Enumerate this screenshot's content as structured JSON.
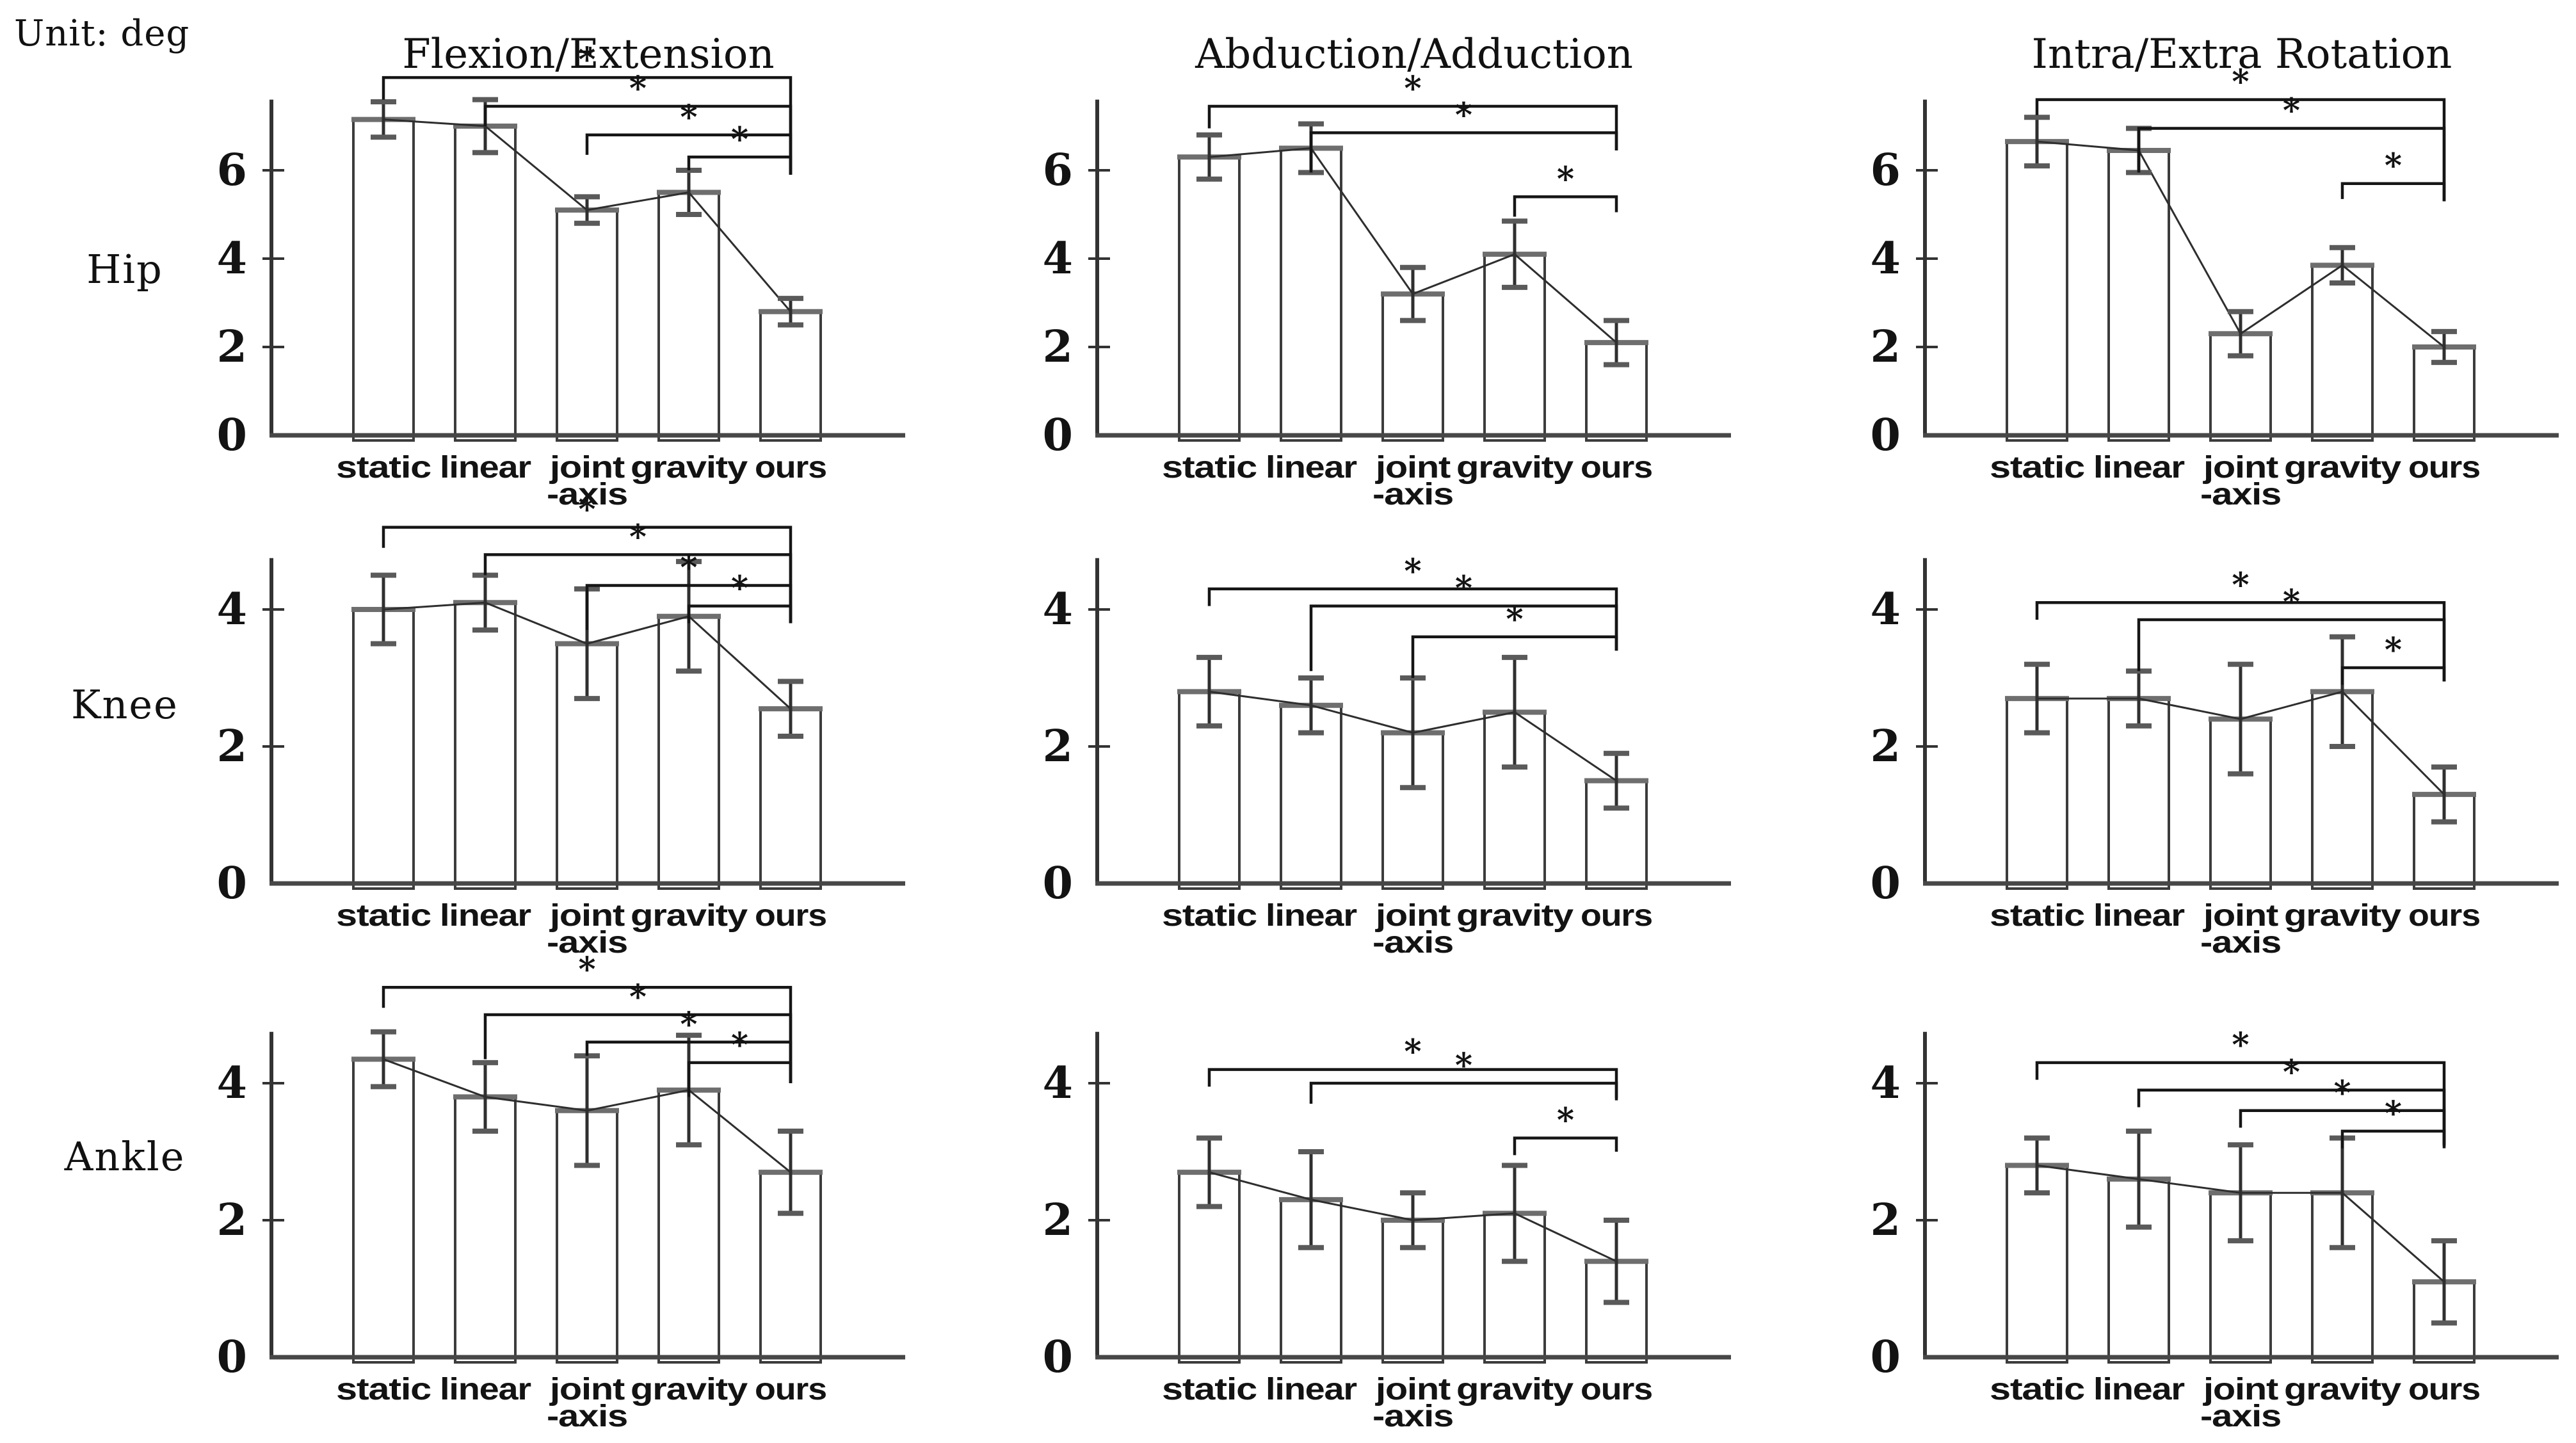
{
  "unit_label": "Unit: deg",
  "columns": [
    {
      "title": "Flexion/Extension"
    },
    {
      "title": "Abduction/Adduction"
    },
    {
      "title": "Intra/Extra Rotation"
    }
  ],
  "rows": [
    {
      "label": "Hip"
    },
    {
      "label": "Knee"
    },
    {
      "label": "Ankle"
    }
  ],
  "categories": [
    "static",
    "linear",
    "joint\n-axis",
    "gravity",
    "ours"
  ],
  "colors": {
    "background": "#ffffff",
    "axis": "#333333",
    "baseline": "#474747",
    "bar_fill": "#ffffff",
    "bar_edge": "#3c3c3c",
    "bar_top_cap": "#6e6e6e",
    "error_stem": "#2f2f2f",
    "error_cap": "#5a5a5a",
    "mean_line": "#2e2e2e",
    "bracket": "#151515",
    "text": "#131313"
  },
  "chart_data": [
    {
      "id": "hip-flexion-extension",
      "row": "Hip",
      "column": "Flexion/Extension",
      "type": "bar",
      "unit": "deg",
      "categories": [
        "static",
        "linear",
        "joint-axis",
        "gravity",
        "ours"
      ],
      "values": [
        7.15,
        7.0,
        5.1,
        5.5,
        2.8
      ],
      "errors": [
        0.4,
        0.6,
        0.3,
        0.5,
        0.3
      ],
      "yticks": [
        0,
        2,
        4,
        6
      ],
      "ylim": [
        0,
        7.6
      ],
      "significance": [
        {
          "from": "static",
          "to": "ours",
          "label": "*",
          "level": 8.1,
          "left_drop": 0.5,
          "right_drop": 2.2
        },
        {
          "from": "linear",
          "to": "ours",
          "label": "*",
          "level": 7.45,
          "left_drop": 0.45,
          "right_drop": 1.55
        },
        {
          "from": "joint-axis",
          "to": "ours",
          "label": "*",
          "level": 6.8,
          "left_drop": 0.45,
          "right_drop": 0.9
        },
        {
          "from": "gravity",
          "to": "ours",
          "label": "*",
          "level": 6.3,
          "left_drop": 0.3,
          "right_drop": 0.4
        }
      ]
    },
    {
      "id": "hip-abduction-adduction",
      "row": "Hip",
      "column": "Abduction/Adduction",
      "type": "bar",
      "unit": "deg",
      "categories": [
        "static",
        "linear",
        "joint-axis",
        "gravity",
        "ours"
      ],
      "values": [
        6.3,
        6.5,
        3.2,
        4.1,
        2.1
      ],
      "errors": [
        0.5,
        0.55,
        0.6,
        0.75,
        0.5
      ],
      "yticks": [
        0,
        2,
        4,
        6
      ],
      "ylim": [
        0,
        7.6
      ],
      "significance": [
        {
          "from": "static",
          "to": "ours",
          "label": "*",
          "level": 7.45,
          "left_drop": 0.5,
          "right_drop": 1.0
        },
        {
          "from": "linear",
          "to": "ours",
          "label": "*",
          "level": 6.85,
          "left_drop": 0.9,
          "right_drop": 0.4
        },
        {
          "from": "gravity",
          "to": "ours",
          "label": "*",
          "level": 5.4,
          "left_drop": 0.45,
          "right_drop": 0.35
        }
      ]
    },
    {
      "id": "hip-intra-extra-rotation",
      "row": "Hip",
      "column": "Intra/Extra Rotation",
      "type": "bar",
      "unit": "deg",
      "categories": [
        "static",
        "linear",
        "joint-axis",
        "gravity",
        "ours"
      ],
      "values": [
        6.65,
        6.45,
        2.3,
        3.85,
        2.0
      ],
      "errors": [
        0.55,
        0.5,
        0.5,
        0.4,
        0.35
      ],
      "yticks": [
        0,
        2,
        4,
        6
      ],
      "ylim": [
        0,
        7.6
      ],
      "significance": [
        {
          "from": "static",
          "to": "ours",
          "label": "*",
          "level": 7.6,
          "left_drop": 0.35,
          "right_drop": 2.3
        },
        {
          "from": "linear",
          "to": "ours",
          "label": "*",
          "level": 6.95,
          "left_drop": 1.0,
          "right_drop": 1.65
        },
        {
          "from": "gravity",
          "to": "ours",
          "label": "*",
          "level": 5.7,
          "left_drop": 0.35,
          "right_drop": 0.4
        }
      ]
    },
    {
      "id": "knee-flexion-extension",
      "row": "Knee",
      "column": "Flexion/Extension",
      "type": "bar",
      "unit": "deg",
      "categories": [
        "static",
        "linear",
        "joint-axis",
        "gravity",
        "ours"
      ],
      "values": [
        4.0,
        4.1,
        3.5,
        3.9,
        2.55
      ],
      "errors": [
        0.5,
        0.4,
        0.8,
        0.8,
        0.4
      ],
      "yticks": [
        0,
        2,
        4
      ],
      "ylim": [
        0,
        4.75
      ],
      "significance": [
        {
          "from": "static",
          "to": "ours",
          "label": "*",
          "level": 5.2,
          "left_drop": 0.3,
          "right_drop": 1.4
        },
        {
          "from": "linear",
          "to": "ours",
          "label": "*",
          "level": 4.8,
          "left_drop": 0.3,
          "right_drop": 1.0
        },
        {
          "from": "joint-axis",
          "to": "ours",
          "label": "*",
          "level": 4.35,
          "left_drop": 0.65,
          "right_drop": 0.55
        },
        {
          "from": "gravity",
          "to": "ours",
          "label": "*",
          "level": 4.05,
          "left_drop": 0.25,
          "right_drop": 0.25
        }
      ]
    },
    {
      "id": "knee-abduction-adduction",
      "row": "Knee",
      "column": "Abduction/Adduction",
      "type": "bar",
      "unit": "deg",
      "categories": [
        "static",
        "linear",
        "joint-axis",
        "gravity",
        "ours"
      ],
      "values": [
        2.8,
        2.6,
        2.2,
        2.5,
        1.5
      ],
      "errors": [
        0.5,
        0.4,
        0.8,
        0.8,
        0.4
      ],
      "yticks": [
        0,
        2,
        4
      ],
      "ylim": [
        0,
        4.75
      ],
      "significance": [
        {
          "from": "static",
          "to": "ours",
          "label": "*",
          "level": 4.3,
          "left_drop": 0.25,
          "right_drop": 0.9
        },
        {
          "from": "linear",
          "to": "ours",
          "label": "*",
          "level": 4.05,
          "left_drop": 0.95,
          "right_drop": 0.65
        },
        {
          "from": "joint-axis",
          "to": "ours",
          "label": "*",
          "level": 3.6,
          "left_drop": 0.6,
          "right_drop": 0.2
        }
      ]
    },
    {
      "id": "knee-intra-extra-rotation",
      "row": "Knee",
      "column": "Intra/Extra Rotation",
      "type": "bar",
      "unit": "deg",
      "categories": [
        "static",
        "linear",
        "joint-axis",
        "gravity",
        "ours"
      ],
      "values": [
        2.7,
        2.7,
        2.4,
        2.8,
        1.3
      ],
      "errors": [
        0.5,
        0.4,
        0.8,
        0.8,
        0.4
      ],
      "yticks": [
        0,
        2,
        4
      ],
      "ylim": [
        0,
        4.75
      ],
      "significance": [
        {
          "from": "static",
          "to": "ours",
          "label": "*",
          "level": 4.1,
          "left_drop": 0.25,
          "right_drop": 1.15
        },
        {
          "from": "linear",
          "to": "ours",
          "label": "*",
          "level": 3.85,
          "left_drop": 0.75,
          "right_drop": 0.9
        },
        {
          "from": "gravity",
          "to": "ours",
          "label": "*",
          "level": 3.15,
          "left_drop": 0.25,
          "right_drop": 0.2
        }
      ]
    },
    {
      "id": "ankle-flexion-extension",
      "row": "Ankle",
      "column": "Flexion/Extension",
      "type": "bar",
      "unit": "deg",
      "categories": [
        "static",
        "linear",
        "joint-axis",
        "gravity",
        "ours"
      ],
      "values": [
        4.35,
        3.8,
        3.6,
        3.9,
        2.7
      ],
      "errors": [
        0.4,
        0.5,
        0.8,
        0.8,
        0.6
      ],
      "yticks": [
        0,
        2,
        4
      ],
      "ylim": [
        0,
        4.75
      ],
      "significance": [
        {
          "from": "static",
          "to": "ours",
          "label": "*",
          "level": 5.4,
          "left_drop": 0.3,
          "right_drop": 1.4
        },
        {
          "from": "linear",
          "to": "ours",
          "label": "*",
          "level": 5.0,
          "left_drop": 0.65,
          "right_drop": 1.0
        },
        {
          "from": "joint-axis",
          "to": "ours",
          "label": "*",
          "level": 4.6,
          "left_drop": 0.2,
          "right_drop": 0.6
        },
        {
          "from": "gravity",
          "to": "ours",
          "label": "*",
          "level": 4.3,
          "left_drop": 0.5,
          "right_drop": 0.3
        }
      ]
    },
    {
      "id": "ankle-abduction-adduction",
      "row": "Ankle",
      "column": "Abduction/Adduction",
      "type": "bar",
      "unit": "deg",
      "categories": [
        "static",
        "linear",
        "joint-axis",
        "gravity",
        "ours"
      ],
      "values": [
        2.7,
        2.3,
        2.0,
        2.1,
        1.4
      ],
      "errors": [
        0.5,
        0.7,
        0.4,
        0.7,
        0.6
      ],
      "yticks": [
        0,
        2,
        4
      ],
      "ylim": [
        0,
        4.75
      ],
      "significance": [
        {
          "from": "static",
          "to": "ours",
          "label": "*",
          "level": 4.2,
          "left_drop": 0.25,
          "right_drop": 0.45
        },
        {
          "from": "linear",
          "to": "ours",
          "label": "*",
          "level": 4.0,
          "left_drop": 0.3,
          "right_drop": 0.22
        },
        {
          "from": "gravity",
          "to": "ours",
          "label": "*",
          "level": 3.2,
          "left_drop": 0.25,
          "right_drop": 0.2
        }
      ]
    },
    {
      "id": "ankle-intra-extra-rotation",
      "row": "Ankle",
      "column": "Intra/Extra Rotation",
      "type": "bar",
      "unit": "deg",
      "categories": [
        "static",
        "linear",
        "joint-axis",
        "gravity",
        "ours"
      ],
      "values": [
        2.8,
        2.6,
        2.4,
        2.4,
        1.1
      ],
      "errors": [
        0.4,
        0.7,
        0.7,
        0.8,
        0.6
      ],
      "yticks": [
        0,
        2,
        4
      ],
      "ylim": [
        0,
        4.75
      ],
      "significance": [
        {
          "from": "static",
          "to": "ours",
          "label": "*",
          "level": 4.3,
          "left_drop": 0.25,
          "right_drop": 1.2
        },
        {
          "from": "linear",
          "to": "ours",
          "label": "*",
          "level": 3.9,
          "left_drop": 0.25,
          "right_drop": 0.85
        },
        {
          "from": "joint-axis",
          "to": "ours",
          "label": "*",
          "level": 3.6,
          "left_drop": 0.25,
          "right_drop": 0.5
        },
        {
          "from": "gravity",
          "to": "ours",
          "label": "*",
          "level": 3.3,
          "left_drop": 0.25,
          "right_drop": 0.22
        }
      ]
    }
  ]
}
